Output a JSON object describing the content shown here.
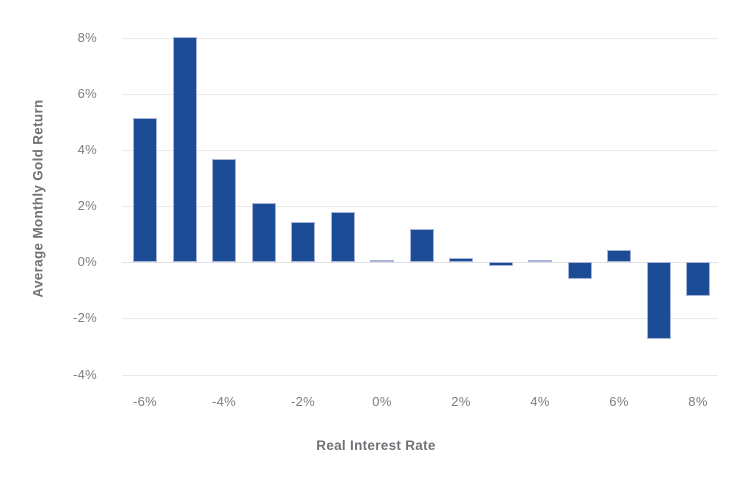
{
  "chart_data": {
    "type": "bar",
    "title": "",
    "xlabel": "Real Interest Rate",
    "ylabel": "Average Monthly Gold Return",
    "x": [
      -6,
      -5,
      -4,
      -3,
      -2,
      -1,
      0,
      1,
      2,
      3,
      4,
      5,
      6,
      7,
      8
    ],
    "values": [
      5.15,
      8.05,
      3.7,
      2.1,
      1.45,
      1.8,
      0.1,
      1.2,
      0.15,
      -0.15,
      0.1,
      -0.6,
      0.45,
      -2.75,
      -1.2
    ],
    "x_tick_values": [
      -6,
      -4,
      -2,
      0,
      2,
      4,
      6,
      8
    ],
    "x_tick_labels": [
      "-6%",
      "-4%",
      "-2%",
      "0%",
      "2%",
      "4%",
      "6%",
      "8%"
    ],
    "y_tick_values": [
      8,
      6,
      4,
      2,
      0,
      -2,
      -4
    ],
    "y_tick_labels": [
      "8%",
      "6%",
      "4%",
      "2%",
      "0%",
      "-2%",
      "-4%"
    ],
    "ylim": [
      -4.3,
      8.3
    ],
    "grid": "horizontal-only",
    "legend": "none",
    "colors": {
      "bar_fill": "#1d4c96",
      "bar_border": "#a8b4d8",
      "gridline": "#e9e9e9",
      "axis_text": "#7b7c80",
      "axis_title": "#717277",
      "background": "#ffffff"
    }
  }
}
